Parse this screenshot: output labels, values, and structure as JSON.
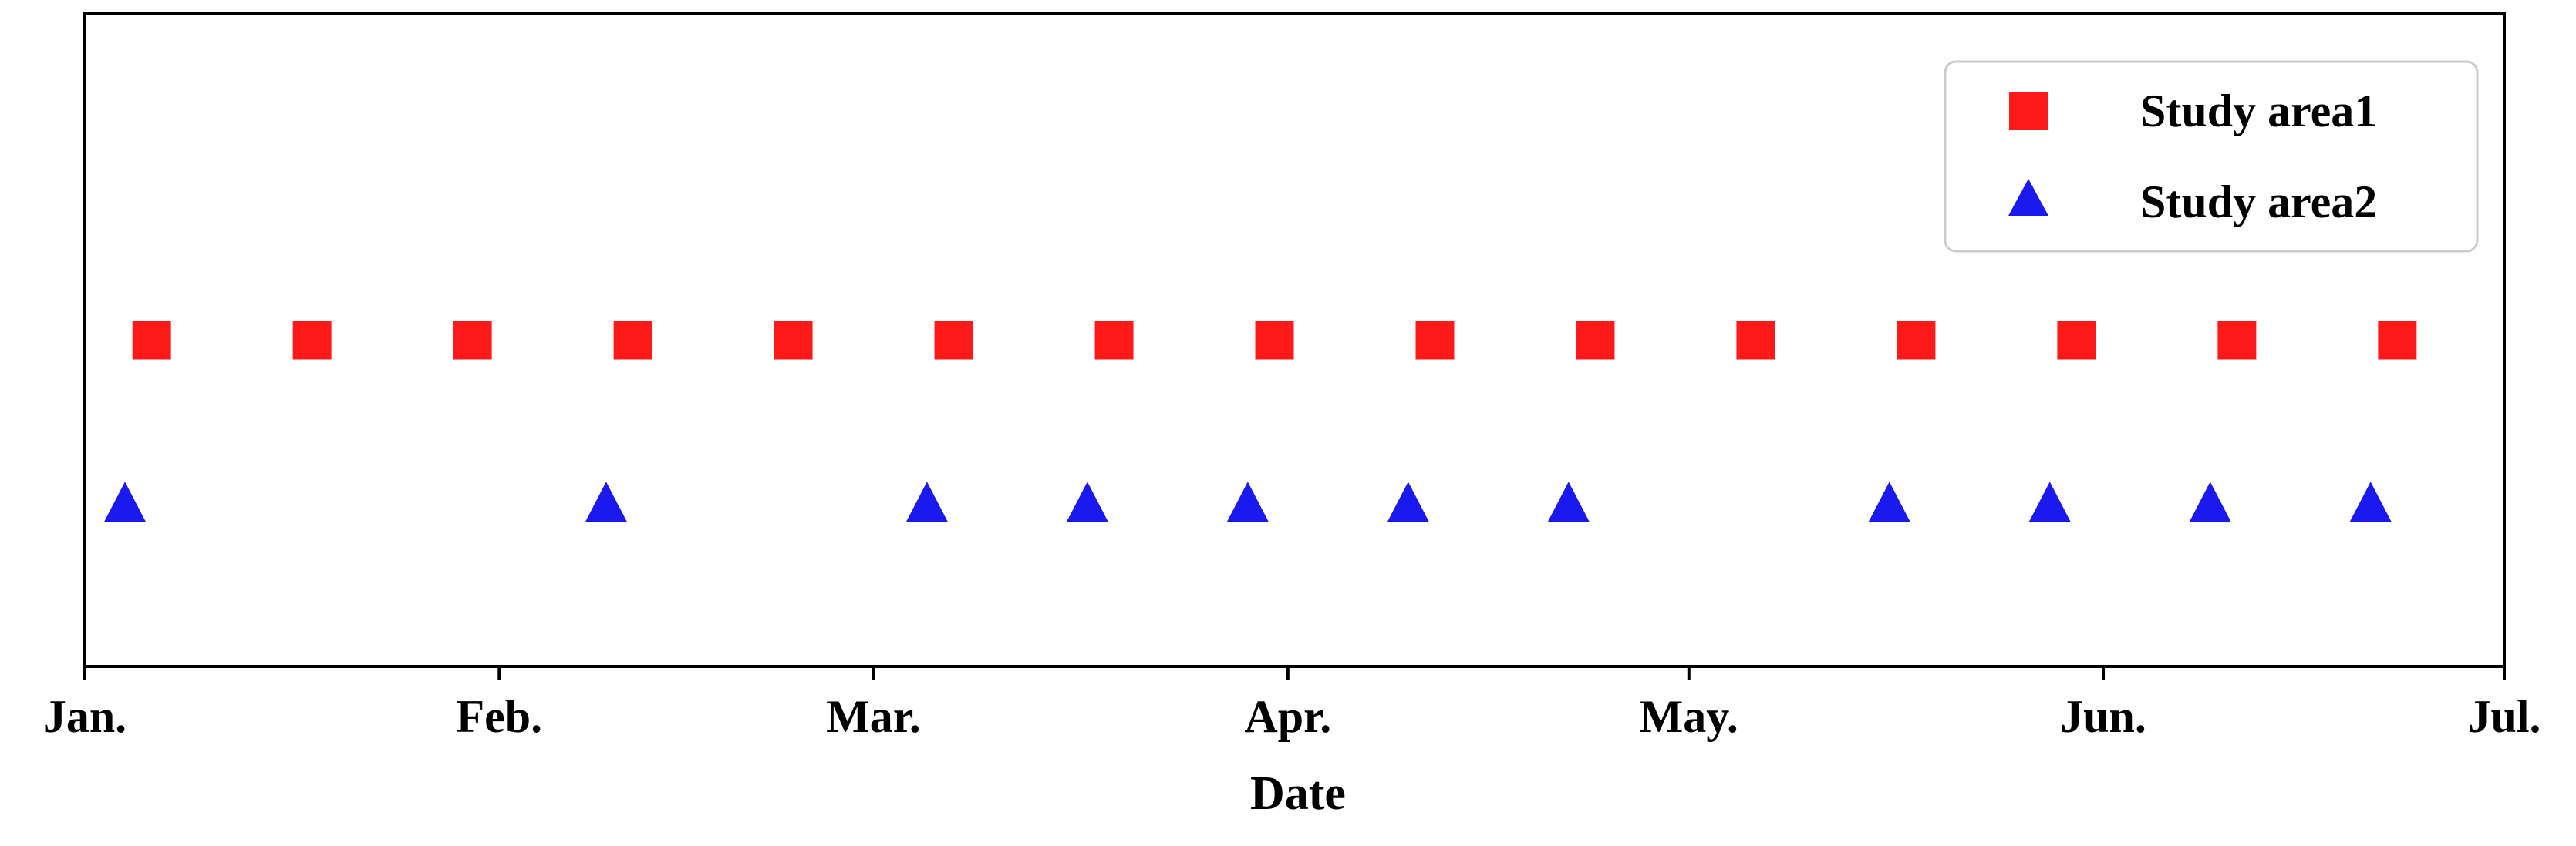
{
  "chart_data": {
    "type": "scatter",
    "title": "",
    "xlabel": "Date",
    "ylabel": "",
    "x_ticks": [
      {
        "date": "2019-01-01",
        "label": "Jan."
      },
      {
        "date": "2019-02-01",
        "label": "Feb."
      },
      {
        "date": "2019-03-01",
        "label": "Mar."
      },
      {
        "date": "2019-04-01",
        "label": "Apr."
      },
      {
        "date": "2019-05-01",
        "label": "May."
      },
      {
        "date": "2019-06-01",
        "label": "Jun."
      },
      {
        "date": "2019-07-01",
        "label": "Jul."
      }
    ],
    "xlim": [
      "2019-01-01",
      "2019-07-01"
    ],
    "ylim": [
      0,
      4
    ],
    "y_axis_visible": false,
    "grid": false,
    "legend": {
      "placement": "top-right"
    },
    "series": [
      {
        "name": "Study area1",
        "marker": "square",
        "color": "#ff1a1a",
        "y": 2,
        "dates": [
          "2019-01-06",
          "2019-01-18",
          "2019-01-30",
          "2019-02-11",
          "2019-02-23",
          "2019-03-07",
          "2019-03-19",
          "2019-03-31",
          "2019-04-12",
          "2019-04-24",
          "2019-05-06",
          "2019-05-18",
          "2019-05-30",
          "2019-06-11",
          "2019-06-23"
        ]
      },
      {
        "name": "Study area2",
        "marker": "triangle",
        "color": "#1a1aee",
        "y": 1,
        "dates": [
          "2019-01-04",
          "2019-02-09",
          "2019-03-05",
          "2019-03-17",
          "2019-03-29",
          "2019-04-10",
          "2019-04-22",
          "2019-05-16",
          "2019-05-28",
          "2019-06-09",
          "2019-06-21"
        ]
      }
    ]
  }
}
